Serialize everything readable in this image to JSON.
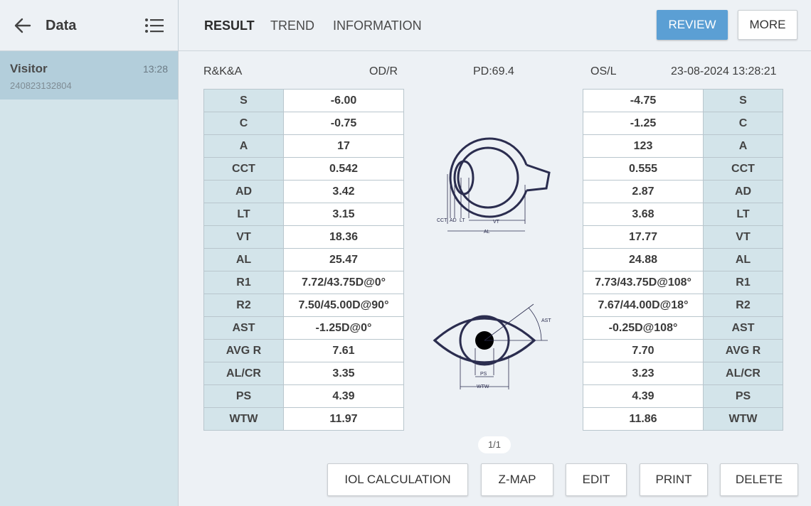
{
  "sidebar": {
    "title": "Data",
    "items": [
      {
        "name": "Visitor",
        "time": "13:28",
        "id": "240823132804"
      }
    ]
  },
  "tabs": [
    "RESULT",
    "TREND",
    "INFORMATION"
  ],
  "actions": {
    "review": "REVIEW",
    "more": "MORE"
  },
  "info": {
    "mode": "R&K&A",
    "right_eye": "OD/R",
    "pd": "PD:69.4",
    "left_eye": "OS/L",
    "datetime": "23-08-2024 13:28:21"
  },
  "measurements": {
    "labels": [
      "S",
      "C",
      "A",
      "CCT",
      "AD",
      "LT",
      "VT",
      "AL",
      "R1",
      "R2",
      "AST",
      "AVG R",
      "AL/CR",
      "PS",
      "WTW"
    ],
    "od": [
      "-6.00",
      "-0.75",
      "17",
      "0.542",
      "3.42",
      "3.15",
      "18.36",
      "25.47",
      "7.72/43.75D@0°",
      "7.50/45.00D@90°",
      "-1.25D@0°",
      "7.61",
      "3.35",
      "4.39",
      "11.97"
    ],
    "os": [
      "-4.75",
      "-1.25",
      "123",
      "0.555",
      "2.87",
      "3.68",
      "17.77",
      "24.88",
      "7.73/43.75D@108°",
      "7.67/44.00D@18°",
      "-0.25D@108°",
      "7.70",
      "3.23",
      "4.39",
      "11.86"
    ]
  },
  "diagram": {
    "biometry_labels": {
      "cct": "CCT",
      "ad": "AD",
      "lt": "LT",
      "vt": "VT",
      "al": "AL"
    },
    "front_labels": {
      "ast": "AST",
      "ps": "PS",
      "wtw": "WTW"
    }
  },
  "pager": "1/1",
  "bottom_buttons": {
    "iol": "IOL CALCULATION",
    "zmap": "Z-MAP",
    "edit": "EDIT",
    "print": "PRINT",
    "delete": "DELETE"
  }
}
